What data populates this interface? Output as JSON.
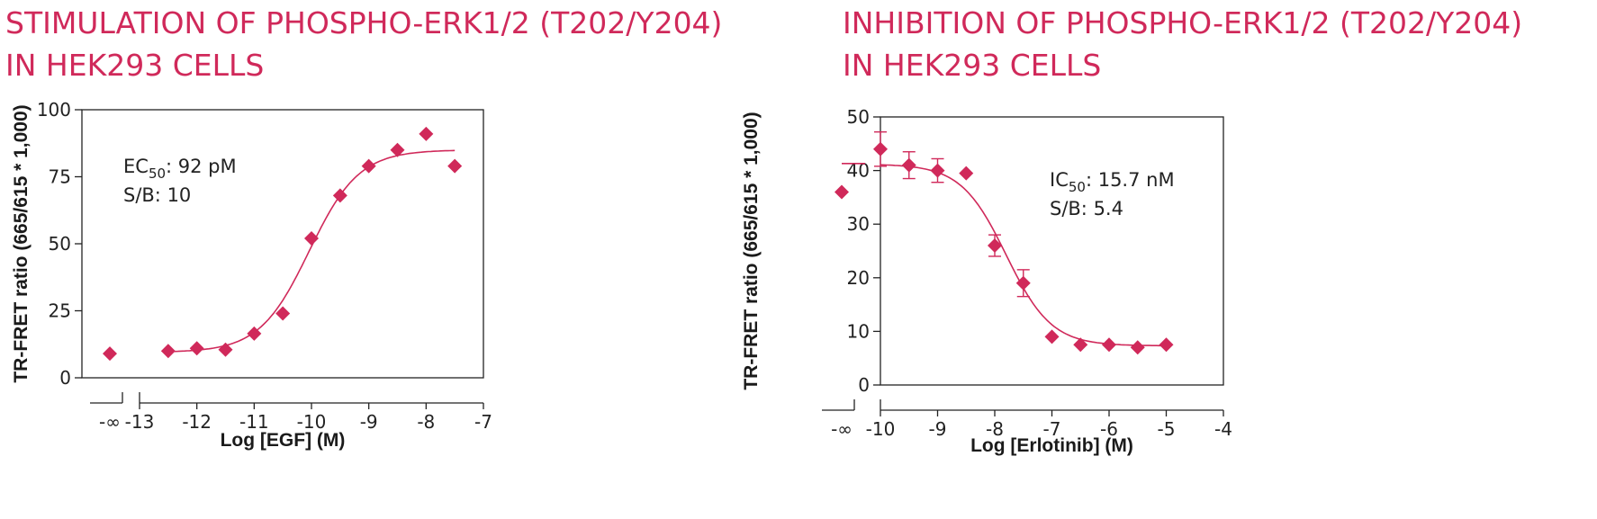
{
  "colors": {
    "accent": "#d0295a",
    "axis": "#222222"
  },
  "chart_data": [
    {
      "type": "scatter",
      "title_lines": [
        "STIMULATION OF PHOSPHO-ERK1/2 (T202/Y204)",
        "IN HEK293 CELLS"
      ],
      "xlabel": "Log [EGF] (M)",
      "ylabel": "TR-FRET ratio (665/615 * 1,000)",
      "xlim": [
        -13,
        -7
      ],
      "ylim": [
        0,
        100
      ],
      "x_ticks": [
        -13,
        -12,
        -11,
        -10,
        -9,
        -8,
        -7
      ],
      "x_tick_labels": [
        "-13",
        "-12",
        "-11",
        "-10",
        "-9",
        "-8",
        "-7"
      ],
      "y_ticks": [
        0,
        25,
        50,
        75,
        100
      ],
      "y_tick_labels": [
        "0",
        "25",
        "50",
        "75",
        "100"
      ],
      "neg_inf_label": "-∞",
      "neg_inf_point": {
        "y": 9
      },
      "neg_inf_line": null,
      "x": [
        -12.5,
        -12,
        -11.5,
        -11,
        -10.5,
        -10,
        -9.5,
        -9,
        -8.5,
        -8,
        -7.5
      ],
      "y": [
        10,
        11,
        10.5,
        16.5,
        24,
        52,
        68,
        79,
        85,
        91,
        79
      ],
      "error": null,
      "fit": {
        "bottom": 9.5,
        "top": 85,
        "logmid": -10.04,
        "hill": 1.0,
        "xrange": [
          -12.5,
          -7.5
        ]
      },
      "annotation": {
        "lead": "EC",
        "sub": "50",
        "value": ": 92 pM",
        "line2": "S/B: 10"
      }
    },
    {
      "type": "scatter",
      "title_lines": [
        "INHIBITION OF PHOSPHO-ERK1/2 (T202/Y204)",
        "IN HEK293 CELLS"
      ],
      "xlabel": "Log [Erlotinib] (M)",
      "ylabel": "TR-FRET ratio (665/615 * 1,000)",
      "xlim": [
        -10,
        -4
      ],
      "ylim": [
        0,
        50
      ],
      "x_ticks": [
        -10,
        -9,
        -8,
        -7,
        -6,
        -5,
        -4
      ],
      "x_tick_labels": [
        "-10",
        "-9",
        "-8",
        "-7",
        "-6",
        "-5",
        "-4"
      ],
      "y_ticks": [
        0,
        10,
        20,
        30,
        40,
        50
      ],
      "y_tick_labels": [
        "0",
        "10",
        "20",
        "30",
        "40",
        "50"
      ],
      "neg_inf_label": "-∞",
      "neg_inf_point": {
        "y": 36
      },
      "neg_inf_line": {
        "y": 41.3
      },
      "x": [
        -10,
        -9.5,
        -9,
        -8.5,
        -8,
        -7.5,
        -7,
        -6.5,
        -6,
        -5.5,
        -5
      ],
      "y": [
        44,
        41,
        40,
        39.5,
        26,
        19,
        9,
        7.5,
        7.5,
        7,
        7.5
      ],
      "error": [
        3.2,
        2.5,
        2.2,
        0,
        2,
        2.5,
        0,
        0,
        0,
        0,
        0
      ],
      "fit": {
        "bottom": 7.3,
        "top": 41.2,
        "logmid": -7.8,
        "hill": -1.1,
        "xrange": [
          -10,
          -5
        ]
      },
      "annotation": {
        "lead": "IC",
        "sub": "50",
        "value": ": 15.7 nM",
        "line2": "S/B: 5.4"
      }
    }
  ]
}
